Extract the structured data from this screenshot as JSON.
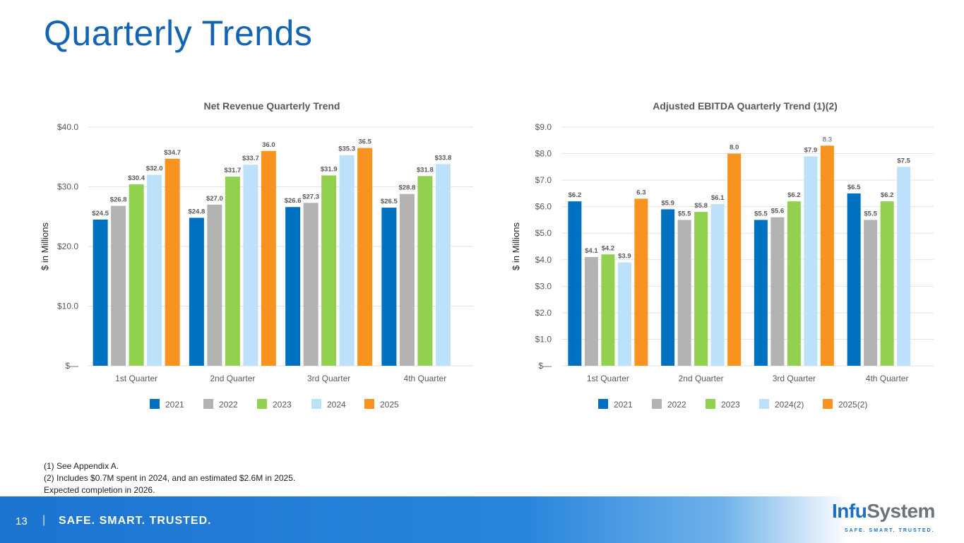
{
  "title": "Quarterly Trends",
  "notes": [
    "(1) See Appendix A.",
    "(2) Includes $0.7M spent in 2024, and an estimated $2.6M in 2025.",
    "Expected completion in 2026."
  ],
  "footer": {
    "page": "13",
    "separator": "|",
    "tagline": "SAFE. SMART. TRUSTED."
  },
  "logo": {
    "name_a": "Infu",
    "name_b": "System",
    "tagline": "SAFE. SMART. TRUSTED."
  },
  "chart_data": [
    {
      "type": "bar",
      "title": "Net Revenue Quarterly Trend",
      "ylabel": "$ in Millions",
      "xlabel": "",
      "ylim": [
        0,
        40
      ],
      "yticks": [
        0,
        10,
        20,
        30,
        40
      ],
      "ytick_labels": [
        "$—",
        "$10.0",
        "$20.0",
        "$30.0",
        "$40.0"
      ],
      "grid": true,
      "legend": "bottom",
      "categories": [
        "1st Quarter",
        "2nd Quarter",
        "3rd Quarter",
        "4th Quarter"
      ],
      "series": [
        {
          "name": "2021",
          "color": "#0070c0",
          "values": [
            24.5,
            24.8,
            26.6,
            26.5
          ],
          "labels": [
            "$24.5",
            "$24.8",
            "$26.6",
            "$26.5"
          ]
        },
        {
          "name": "2022",
          "color": "#b3b3b3",
          "values": [
            26.8,
            27.0,
            27.3,
            28.8
          ],
          "labels": [
            "$26.8",
            "$27.0",
            "$27.3",
            "$28.8"
          ]
        },
        {
          "name": "2023",
          "color": "#92d050",
          "values": [
            30.4,
            31.7,
            31.9,
            31.8
          ],
          "labels": [
            "$30.4",
            "$31.7",
            "$31.9",
            "$31.8"
          ]
        },
        {
          "name": "2024",
          "color": "#bde0fb",
          "values": [
            32.0,
            33.7,
            35.3,
            33.8
          ],
          "labels": [
            "$32.0",
            "$33.7",
            "$35.3",
            "$33.8"
          ]
        },
        {
          "name": "2025",
          "color": "#f7931e",
          "values": [
            34.7,
            36.0,
            36.5,
            null
          ],
          "labels": [
            "$34.7",
            "36.0",
            "36.5",
            null
          ]
        }
      ]
    },
    {
      "type": "bar",
      "title": "Adjusted EBITDA Quarterly Trend (1)(2)",
      "ylabel": "$ in Millions",
      "xlabel": "",
      "ylim": [
        0,
        9
      ],
      "yticks": [
        0,
        1,
        2,
        3,
        4,
        5,
        6,
        7,
        8,
        9
      ],
      "ytick_labels": [
        "$—",
        "$1.0",
        "$2.0",
        "$3.0",
        "$4.0",
        "$5.0",
        "$6.0",
        "$7.0",
        "$8.0",
        "$9.0"
      ],
      "grid": true,
      "legend": "bottom",
      "categories": [
        "1st Quarter",
        "2nd Quarter",
        "3rd Quarter",
        "4th Quarter"
      ],
      "series": [
        {
          "name": "2021",
          "color": "#0070c0",
          "values": [
            6.2,
            5.9,
            5.5,
            6.5
          ],
          "labels": [
            "$6.2",
            "$5.9",
            "$5.5",
            "$6.5"
          ]
        },
        {
          "name": "2022",
          "color": "#b3b3b3",
          "values": [
            4.1,
            5.5,
            5.6,
            5.5
          ],
          "labels": [
            "$4.1",
            "$5.5",
            "$5.6",
            "$5.5"
          ]
        },
        {
          "name": "2023",
          "color": "#92d050",
          "values": [
            4.2,
            5.8,
            6.2,
            6.2
          ],
          "labels": [
            "$4.2",
            "$5.8",
            "$6.2",
            "$6.2"
          ]
        },
        {
          "name": "2024(2)",
          "color": "#bde0fb",
          "values": [
            3.9,
            6.1,
            7.9,
            7.5
          ],
          "labels": [
            "$3.9",
            "$6.1",
            "$7.9",
            "$7.5"
          ]
        },
        {
          "name": "2025(2)",
          "color": "#f7931e",
          "values": [
            6.3,
            8.0,
            8.3,
            null
          ],
          "labels": [
            "6.3",
            "8.0",
            "8.3",
            null
          ]
        }
      ]
    }
  ]
}
